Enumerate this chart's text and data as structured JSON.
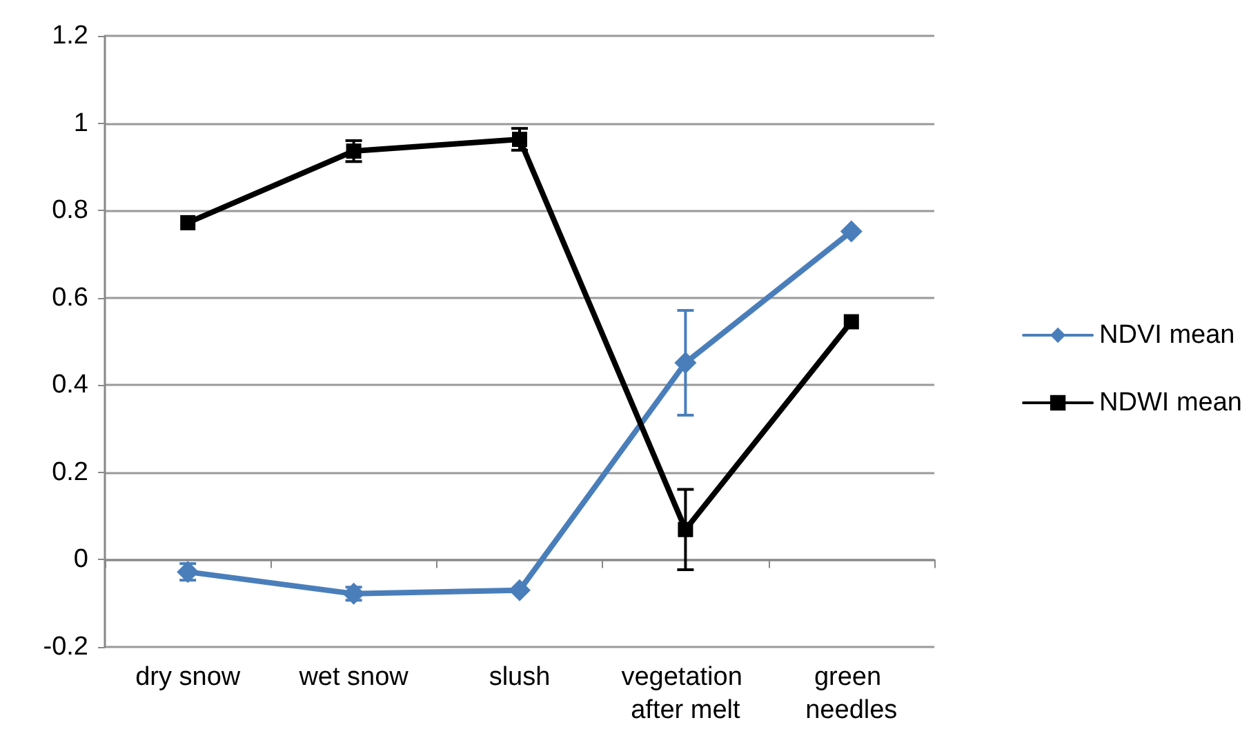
{
  "chart_data": {
    "type": "line",
    "categories": [
      "dry snow",
      "wet snow",
      "slush",
      "vegetation after melt",
      "green needles"
    ],
    "series": [
      {
        "name": "NDVI mean",
        "color": "#4a7ebb",
        "marker": "diamond",
        "values": [
          -0.028,
          -0.078,
          -0.07,
          0.451,
          0.752
        ],
        "errors": [
          0.019,
          0.015,
          null,
          0.12,
          null
        ]
      },
      {
        "name": "NDWI mean",
        "color": "#000000",
        "marker": "square",
        "values": [
          0.772,
          0.936,
          0.963,
          0.069,
          0.545
        ],
        "errors": [
          null,
          0.024,
          0.025,
          0.092,
          null
        ]
      }
    ],
    "ylim": [
      -0.2,
      1.2
    ],
    "yticks": [
      -0.2,
      0,
      0.2,
      0.4,
      0.6,
      0.8,
      1,
      1.2
    ],
    "grid": "y",
    "legend": "right",
    "line_style": "solid"
  }
}
